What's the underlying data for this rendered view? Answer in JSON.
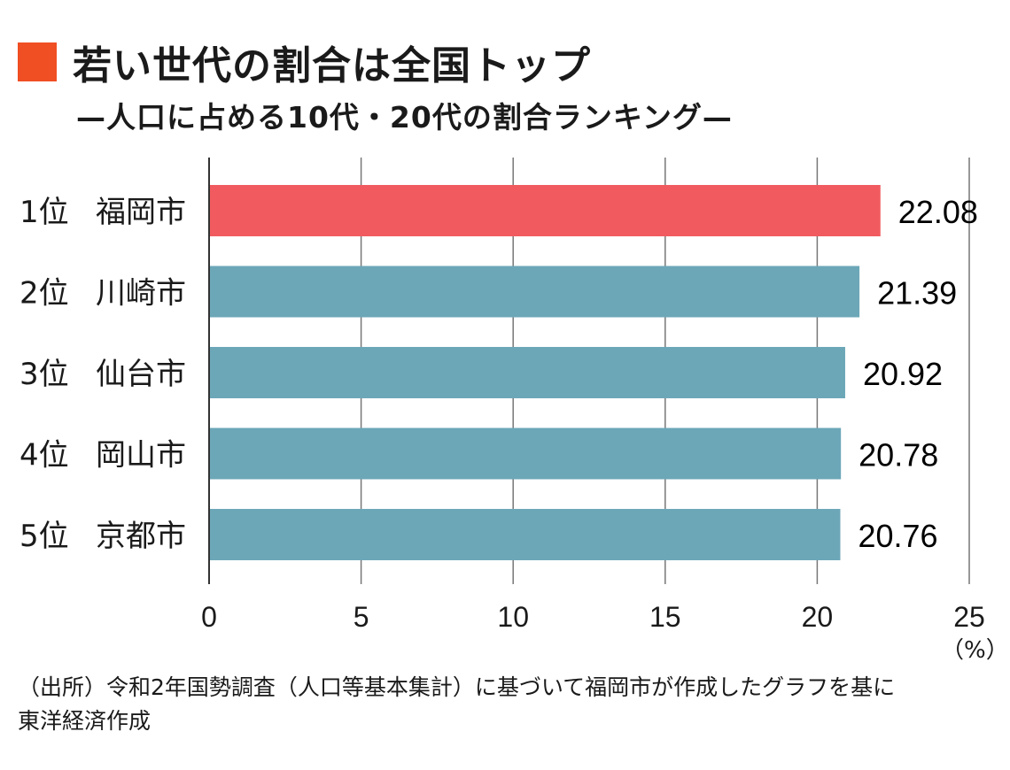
{
  "colors": {
    "title_square": "#f04e23",
    "highlight_bar": "#f15b5f",
    "bar": "#6ca7b8",
    "grid": "#777777",
    "axis": "#333333",
    "text": "#1a1a1a"
  },
  "header": {
    "title": "若い世代の割合は全国トップ",
    "subtitle": "—人口に占める10代・20代の割合ランキング—"
  },
  "chart_data": {
    "type": "bar",
    "orientation": "horizontal",
    "categories": [
      "1位 福岡市",
      "2位 川崎市",
      "3位 仙台市",
      "4位 岡山市",
      "5位 京都市"
    ],
    "ranks": [
      "1位",
      "2位",
      "3位",
      "4位",
      "5位"
    ],
    "cities": [
      "福岡市",
      "川崎市",
      "仙台市",
      "岡山市",
      "京都市"
    ],
    "values": [
      22.08,
      21.39,
      20.92,
      20.78,
      20.76
    ],
    "value_labels": [
      "22.08",
      "21.39",
      "20.92",
      "20.78",
      "20.76"
    ],
    "highlight_index": 0,
    "xlim": [
      0,
      25
    ],
    "xticks": [
      0,
      5,
      10,
      15,
      20,
      25
    ],
    "xtick_labels": [
      "0",
      "5",
      "10",
      "15",
      "20",
      "25"
    ],
    "xunit": "（%）",
    "grid": true
  },
  "source": {
    "line1": "（出所）令和2年国勢調査（人口等基本集計）に基づいて福岡市が作成したグラフを基に",
    "line2": "東洋経済作成"
  }
}
